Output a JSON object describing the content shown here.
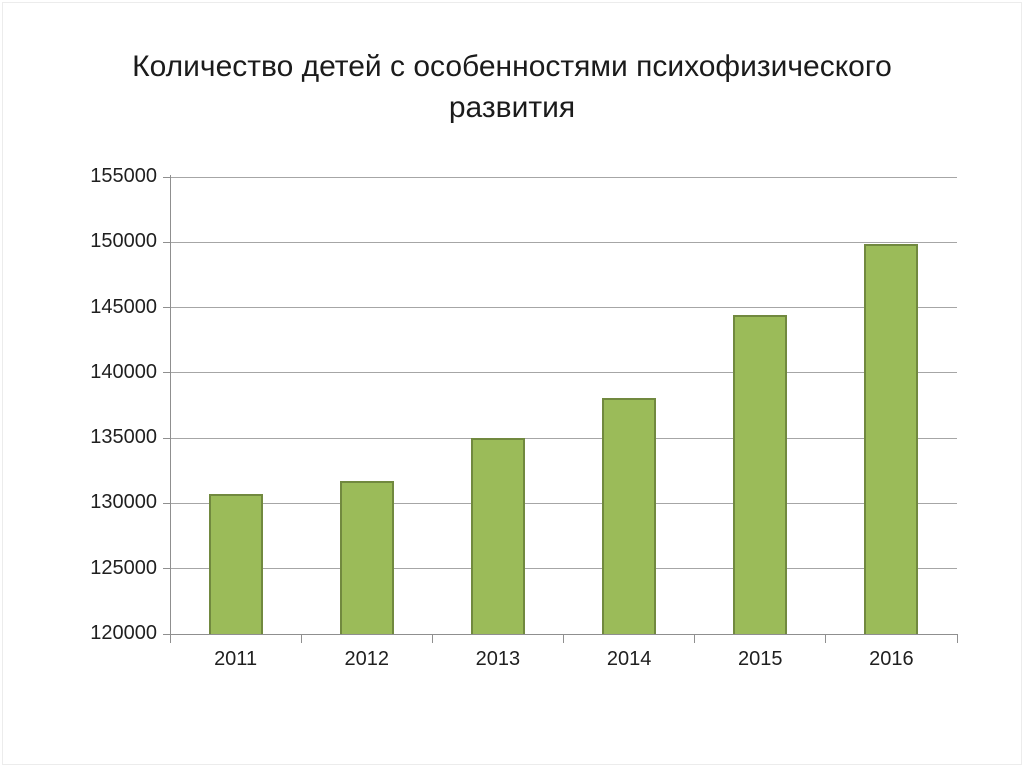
{
  "title": "Количество детей с особенностями психофизического развития",
  "title_lines": [
    "Количество детей с особенностями психофизического",
    "развития"
  ],
  "chart_data": {
    "type": "bar",
    "title": "Количество детей с особенностями психофизического развития",
    "categories": [
      "2011",
      "2012",
      "2013",
      "2014",
      "2015",
      "2016"
    ],
    "values": [
      130700,
      131700,
      135000,
      138100,
      144400,
      149900
    ],
    "xlabel": "",
    "ylabel": "",
    "ylim": [
      120000,
      155000
    ],
    "ytick_step": 5000,
    "yticks": [
      120000,
      125000,
      130000,
      135000,
      140000,
      145000,
      150000,
      155000
    ],
    "grid": true,
    "legend": "none",
    "colors": {
      "bar_fill": "#9BBB59",
      "bar_border": "#71893F",
      "gridline": "#A6A6A6",
      "axis": "#8F8F8F",
      "tick_label": "#1f1f1f",
      "title": "#1b1b1b",
      "background": "#ffffff",
      "slide_border": "#ececec"
    }
  }
}
